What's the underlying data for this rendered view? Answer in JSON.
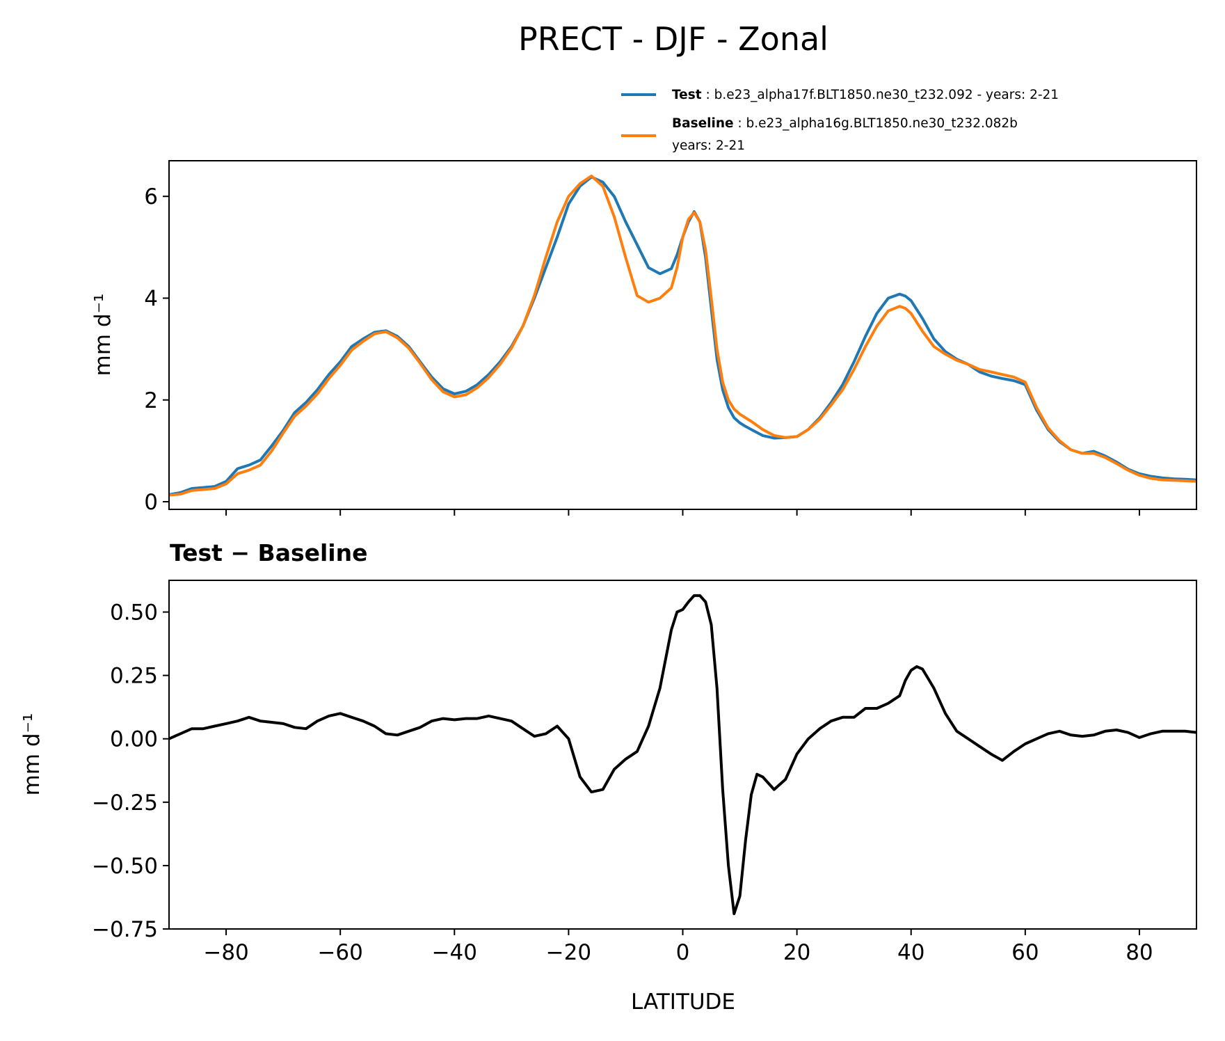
{
  "figure": {
    "title": "PRECT - DJF - Zonal"
  },
  "legend": {
    "placement": "above top panel, right",
    "entries": [
      {
        "bold": "Test",
        "text": " : b.e23_alpha17f.BLT1850.ne30_t232.092 - years: 2-21",
        "text2": "",
        "color": "#1f77b4"
      },
      {
        "bold": "Baseline",
        "text": " : b.e23_alpha16g.BLT1850.ne30_t232.082b",
        "text2": "years: 2-21",
        "color": "#ff7f0e"
      }
    ]
  },
  "chart_data": [
    {
      "type": "line",
      "panel": "top",
      "title": "",
      "xlabel": "",
      "ylabel": "mm d⁻¹",
      "xlim": [
        -90,
        90
      ],
      "ylim": [
        -0.15,
        6.7
      ],
      "xticks": [
        -80,
        -60,
        -40,
        -20,
        0,
        20,
        40,
        60,
        80
      ],
      "xtick_labels_shown": false,
      "yticks": [
        0,
        2,
        4,
        6
      ],
      "ytick_labels": [
        "0",
        "2",
        "4",
        "6"
      ],
      "grid": false,
      "x": [
        -90,
        -88,
        -86,
        -84,
        -82,
        -80,
        -78,
        -76,
        -74,
        -72,
        -70,
        -68,
        -66,
        -64,
        -62,
        -60,
        -58,
        -56,
        -54,
        -52,
        -50,
        -48,
        -46,
        -44,
        -42,
        -40,
        -38,
        -36,
        -34,
        -32,
        -30,
        -28,
        -26,
        -24,
        -22,
        -20,
        -18,
        -16,
        -14,
        -12,
        -10,
        -8,
        -6,
        -4,
        -2,
        -1,
        0,
        1,
        2,
        3,
        4,
        5,
        6,
        7,
        8,
        9,
        10,
        11,
        12,
        14,
        16,
        18,
        20,
        22,
        24,
        26,
        28,
        30,
        32,
        34,
        36,
        38,
        39,
        40,
        42,
        44,
        46,
        48,
        50,
        52,
        54,
        56,
        58,
        60,
        62,
        64,
        66,
        68,
        70,
        72,
        74,
        76,
        78,
        80,
        82,
        84,
        86,
        88,
        90
      ],
      "series": [
        {
          "name": "Test",
          "color": "#1f77b4",
          "values": [
            0.14,
            0.18,
            0.26,
            0.28,
            0.3,
            0.4,
            0.65,
            0.72,
            0.82,
            1.1,
            1.4,
            1.75,
            1.95,
            2.2,
            2.5,
            2.75,
            3.05,
            3.2,
            3.33,
            3.36,
            3.25,
            3.05,
            2.75,
            2.45,
            2.22,
            2.12,
            2.17,
            2.3,
            2.5,
            2.75,
            3.05,
            3.45,
            4.0,
            4.6,
            5.2,
            5.85,
            6.2,
            6.38,
            6.28,
            6.0,
            5.5,
            5.05,
            4.6,
            4.48,
            4.58,
            4.85,
            5.2,
            5.5,
            5.7,
            5.5,
            4.8,
            3.8,
            2.8,
            2.2,
            1.85,
            1.65,
            1.55,
            1.48,
            1.42,
            1.3,
            1.25,
            1.26,
            1.28,
            1.42,
            1.65,
            1.95,
            2.3,
            2.75,
            3.25,
            3.7,
            4.0,
            4.08,
            4.04,
            3.95,
            3.6,
            3.2,
            2.95,
            2.8,
            2.7,
            2.55,
            2.47,
            2.42,
            2.38,
            2.3,
            1.8,
            1.42,
            1.18,
            1.02,
            0.95,
            0.99,
            0.9,
            0.78,
            0.64,
            0.55,
            0.5,
            0.47,
            0.45,
            0.44,
            0.43
          ]
        },
        {
          "name": "Baseline",
          "color": "#ff7f0e",
          "values": [
            0.13,
            0.15,
            0.22,
            0.24,
            0.26,
            0.35,
            0.55,
            0.62,
            0.72,
            1.0,
            1.35,
            1.68,
            1.88,
            2.12,
            2.42,
            2.68,
            2.98,
            3.15,
            3.3,
            3.34,
            3.22,
            3.02,
            2.72,
            2.4,
            2.16,
            2.06,
            2.1,
            2.24,
            2.44,
            2.7,
            3.02,
            3.45,
            4.05,
            4.8,
            5.5,
            6.0,
            6.25,
            6.4,
            6.2,
            5.6,
            4.8,
            4.05,
            3.92,
            4.0,
            4.2,
            4.6,
            5.2,
            5.55,
            5.68,
            5.5,
            4.95,
            4.0,
            3.0,
            2.35,
            2.0,
            1.82,
            1.72,
            1.65,
            1.58,
            1.42,
            1.3,
            1.26,
            1.28,
            1.42,
            1.62,
            1.9,
            2.2,
            2.6,
            3.05,
            3.45,
            3.75,
            3.84,
            3.8,
            3.7,
            3.35,
            3.05,
            2.9,
            2.78,
            2.7,
            2.6,
            2.55,
            2.5,
            2.45,
            2.35,
            1.85,
            1.45,
            1.2,
            1.02,
            0.95,
            0.95,
            0.87,
            0.75,
            0.62,
            0.52,
            0.46,
            0.43,
            0.42,
            0.41,
            0.4
          ]
        }
      ]
    },
    {
      "type": "line",
      "panel": "bottom",
      "title": "Test − Baseline",
      "xlabel": "LATITUDE",
      "ylabel": "mm d⁻¹",
      "xlim": [
        -90,
        90
      ],
      "ylim": [
        -0.75,
        0.625
      ],
      "xticks": [
        -80,
        -60,
        -40,
        -20,
        0,
        20,
        40,
        60,
        80
      ],
      "xtick_labels": [
        "−80",
        "−60",
        "−40",
        "−20",
        "0",
        "20",
        "40",
        "60",
        "80"
      ],
      "yticks": [
        0.5,
        0.25,
        0.0,
        -0.25,
        -0.5,
        -0.75
      ],
      "ytick_labels": [
        "0.50",
        "0.25",
        "0.00",
        "−0.25",
        "−0.50",
        "−0.75"
      ],
      "grid": false,
      "x": [
        -90,
        -88,
        -86,
        -84,
        -82,
        -80,
        -78,
        -76,
        -74,
        -72,
        -70,
        -68,
        -66,
        -64,
        -62,
        -60,
        -58,
        -56,
        -54,
        -52,
        -50,
        -48,
        -46,
        -44,
        -42,
        -40,
        -38,
        -36,
        -34,
        -32,
        -30,
        -28,
        -26,
        -24,
        -22,
        -20,
        -18,
        -16,
        -14,
        -12,
        -10,
        -8,
        -6,
        -4,
        -2,
        -1,
        0,
        1,
        2,
        3,
        4,
        5,
        6,
        7,
        8,
        9,
        10,
        11,
        12,
        13,
        14,
        16,
        18,
        20,
        22,
        24,
        26,
        28,
        30,
        32,
        34,
        36,
        38,
        39,
        40,
        41,
        42,
        44,
        46,
        48,
        50,
        52,
        54,
        56,
        58,
        60,
        62,
        64,
        66,
        68,
        70,
        72,
        74,
        76,
        78,
        80,
        82,
        84,
        86,
        88,
        90
      ],
      "series": [
        {
          "name": "",
          "color": "#000000",
          "values": [
            0.0,
            0.02,
            0.04,
            0.04,
            0.05,
            0.06,
            0.07,
            0.085,
            0.07,
            0.065,
            0.06,
            0.045,
            0.04,
            0.07,
            0.09,
            0.1,
            0.085,
            0.07,
            0.05,
            0.02,
            0.015,
            0.03,
            0.045,
            0.07,
            0.08,
            0.075,
            0.08,
            0.08,
            0.09,
            0.08,
            0.07,
            0.04,
            0.01,
            0.02,
            0.05,
            0.0,
            -0.15,
            -0.21,
            -0.2,
            -0.12,
            -0.08,
            -0.05,
            0.05,
            0.2,
            0.43,
            0.5,
            0.51,
            0.54,
            0.565,
            0.565,
            0.54,
            0.45,
            0.2,
            -0.2,
            -0.5,
            -0.69,
            -0.62,
            -0.4,
            -0.22,
            -0.14,
            -0.15,
            -0.2,
            -0.16,
            -0.06,
            0.0,
            0.04,
            0.07,
            0.085,
            0.085,
            0.12,
            0.12,
            0.14,
            0.17,
            0.23,
            0.27,
            0.285,
            0.275,
            0.2,
            0.1,
            0.03,
            0.0,
            -0.03,
            -0.06,
            -0.085,
            -0.05,
            -0.02,
            0.0,
            0.02,
            0.03,
            0.015,
            0.01,
            0.015,
            0.03,
            0.035,
            0.025,
            0.005,
            0.02,
            0.03,
            0.03,
            0.03,
            0.025
          ]
        }
      ]
    }
  ]
}
